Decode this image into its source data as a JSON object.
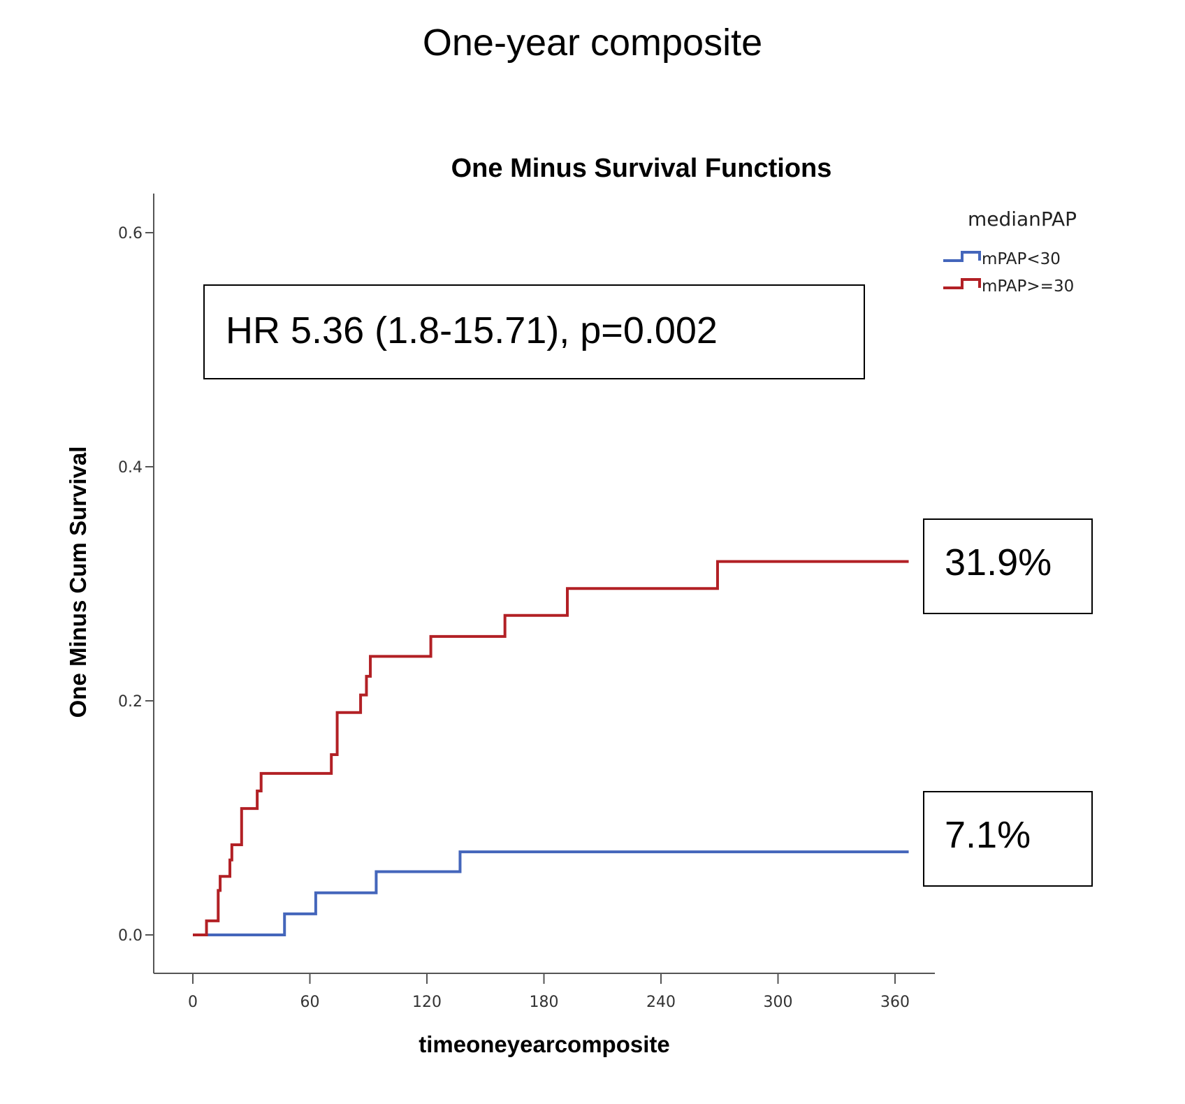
{
  "page_title": "One-year composite",
  "chart_data": {
    "type": "line",
    "subtype": "kaplan-meier step",
    "title": "One Minus Survival Functions",
    "xlabel": "timeoneyearcomposite",
    "ylabel": "One Minus Cum Survival",
    "xlim": [
      -30,
      380
    ],
    "ylim": [
      -0.03,
      0.63
    ],
    "xticks": [
      0,
      60,
      120,
      180,
      240,
      300,
      360
    ],
    "xtick_labels": [
      "0",
      "60",
      "120",
      "180",
      "240",
      "300",
      "360"
    ],
    "yticks": [
      0.0,
      0.2,
      0.4,
      0.6
    ],
    "ytick_labels": [
      "0.0",
      "0.2",
      "0.4",
      "0.6"
    ],
    "grid": false,
    "legend": {
      "title": "medianPAP",
      "placement": "top-right",
      "entries": [
        "mPAP<30",
        "mPAP>=30"
      ]
    },
    "series": [
      {
        "name": "mPAP<30",
        "color": "#4466bb",
        "steps": [
          {
            "x": 0,
            "y": 0.0
          },
          {
            "x": 47,
            "y": 0.018
          },
          {
            "x": 63,
            "y": 0.036
          },
          {
            "x": 94,
            "y": 0.054
          },
          {
            "x": 137,
            "y": 0.071
          }
        ],
        "end_x": 367
      },
      {
        "name": "mPAP>=30",
        "color": "#b22025",
        "steps": [
          {
            "x": 0,
            "y": 0.0
          },
          {
            "x": 7,
            "y": 0.012
          },
          {
            "x": 13,
            "y": 0.038
          },
          {
            "x": 14,
            "y": 0.05
          },
          {
            "x": 19,
            "y": 0.064
          },
          {
            "x": 20,
            "y": 0.077
          },
          {
            "x": 25,
            "y": 0.108
          },
          {
            "x": 33,
            "y": 0.123
          },
          {
            "x": 35,
            "y": 0.138
          },
          {
            "x": 71,
            "y": 0.154
          },
          {
            "x": 74,
            "y": 0.19
          },
          {
            "x": 86,
            "y": 0.205
          },
          {
            "x": 89,
            "y": 0.221
          },
          {
            "x": 91,
            "y": 0.238
          },
          {
            "x": 122,
            "y": 0.255
          },
          {
            "x": 160,
            "y": 0.273
          },
          {
            "x": 192,
            "y": 0.296
          },
          {
            "x": 269,
            "y": 0.319
          }
        ],
        "end_x": 367
      }
    ],
    "annotations": [
      {
        "text": "HR 5.36 (1.8-15.71), p=0.002",
        "kind": "stats-box"
      },
      {
        "text": "31.9%",
        "kind": "end-value",
        "series": "mPAP>=30"
      },
      {
        "text": "7.1%",
        "kind": "end-value",
        "series": "mPAP<30"
      }
    ]
  }
}
